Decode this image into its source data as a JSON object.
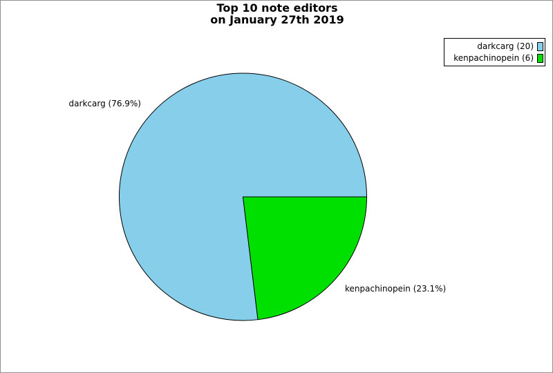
{
  "window": {
    "background": "#ffffff",
    "border_color": "#909090"
  },
  "title": {
    "line1": "Top 10 note editors",
    "line2": "on January 27th 2019"
  },
  "legend": {
    "position": "upper-right",
    "items": [
      {
        "label": "darkcarg (20)",
        "color": "#87ceeb"
      },
      {
        "label": "kenpachinopein (6)",
        "color": "#00e000"
      }
    ]
  },
  "chart_data": {
    "type": "pie",
    "title": "Top 10 note editors on January 27th 2019",
    "total": 26,
    "start_angle": 0,
    "direction": "counterclockwise",
    "outline_color": "#000000",
    "slices": [
      {
        "name": "darkcarg",
        "value": 20,
        "percent": 76.9,
        "color": "#87ceeb",
        "label": "darkcarg (76.9%)"
      },
      {
        "name": "kenpachinopein",
        "value": 6,
        "percent": 23.1,
        "color": "#00e000",
        "label": "kenpachinopein (23.1%)"
      }
    ]
  }
}
